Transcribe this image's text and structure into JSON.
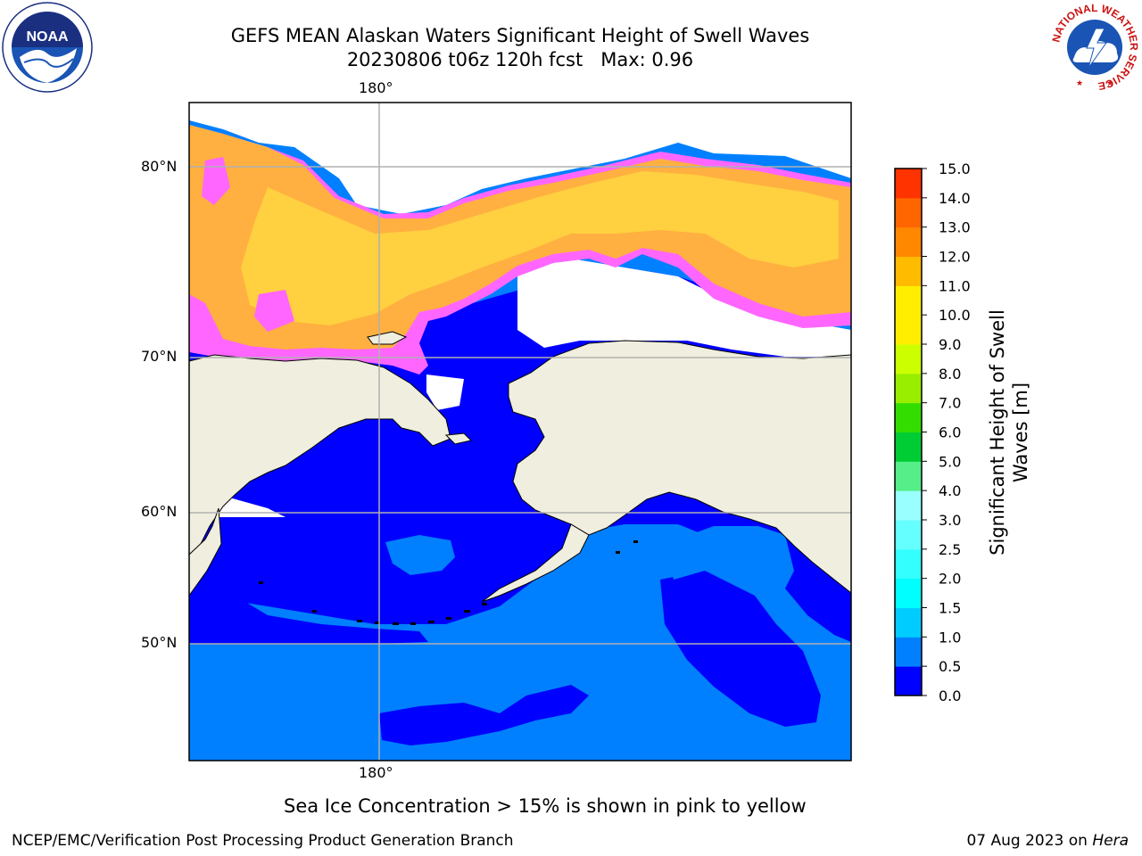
{
  "title": {
    "line1": "GEFS MEAN Alaskan Waters Significant Height of Swell Waves",
    "line2": "20230806 t06z 120h fcst   Max: 0.96"
  },
  "map": {
    "lon_label_top": "180°",
    "lon_label_bottom": "180°",
    "lat_labels": [
      "80°N",
      "70°N",
      "60°N",
      "50°N"
    ],
    "colors": {
      "land": "#efeedf",
      "ocean_low": "#0000ff",
      "ocean_mid": "#0080ff",
      "ice_pink": "#ff66ff",
      "ice_orange": "#ffb040",
      "ice_yellow": "#ffd040",
      "gridline": "#b0b0b0"
    }
  },
  "colorbar": {
    "label": "Significant Height of Swell Waves [m]",
    "ticks": [
      "0.0",
      "0.5",
      "1.0",
      "1.5",
      "2.0",
      "2.5",
      "3.0",
      "4.0",
      "5.0",
      "6.0",
      "7.0",
      "8.0",
      "9.0",
      "10.0",
      "11.0",
      "12.0",
      "13.0",
      "14.0",
      "15.0"
    ],
    "colors": [
      "#0000ff",
      "#0080ff",
      "#00ccff",
      "#00ffff",
      "#33ffff",
      "#66ffff",
      "#99ffff",
      "#55ee88",
      "#00cc33",
      "#33dd00",
      "#99ee00",
      "#ccff00",
      "#ffee00",
      "#ffee00",
      "#ffbb00",
      "#ff8800",
      "#ff6600",
      "#ff3300",
      "#ff0000"
    ]
  },
  "caption": "Sea Ice Concentration > 15% is shown in pink to yellow",
  "footer": {
    "left": "NCEP/EMC/Verification Post Processing Product Generation Branch",
    "date": "07 Aug 2023 on ",
    "host": "Hera"
  },
  "logos": {
    "noaa": "NOAA",
    "nws_ring_text": "NATIONAL WEATHER SERVICE"
  }
}
